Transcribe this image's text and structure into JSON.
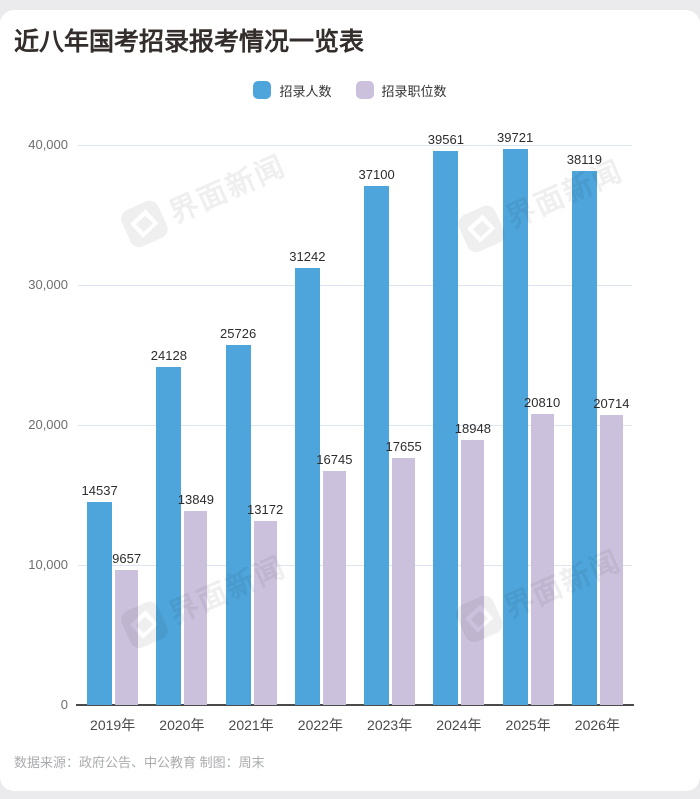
{
  "title": "近八年国考招录报考情况一览表",
  "legend": [
    {
      "label": "招录人数",
      "color": "#4DA5DB"
    },
    {
      "label": "招录职位数",
      "color": "#CCC1DD"
    }
  ],
  "watermark": {
    "text": "界面新闻",
    "icon": "jiemian-news-logo"
  },
  "footer": {
    "source_note": "数据来源：政府公告、中公教育 制图：周末"
  },
  "colors": {
    "recruit_bar": "#4DA5DB",
    "position_bar": "#CCC1DD",
    "gridline": "#dde5ef",
    "baseline": "#4b4b4b"
  },
  "chart_data": {
    "type": "bar",
    "title": "近八年国考招录报考情况一览表",
    "categories": [
      "2019年",
      "2020年",
      "2021年",
      "2022年",
      "2023年",
      "2024年",
      "2025年",
      "2026年"
    ],
    "series": [
      {
        "name": "招录人数",
        "color": "#4DA5DB",
        "values": [
          14537,
          24128,
          25726,
          31242,
          37100,
          39561,
          39721,
          38119
        ]
      },
      {
        "name": "招录职位数",
        "color": "#CCC1DD",
        "values": [
          9657,
          13849,
          13172,
          16745,
          17655,
          18948,
          20810,
          20714
        ]
      }
    ],
    "xlabel": "",
    "ylabel": "",
    "ylim": [
      0,
      40000
    ],
    "yticks": [
      {
        "value": 0,
        "label": "0"
      },
      {
        "value": 10000,
        "label": "10,000"
      },
      {
        "value": 20000,
        "label": "20,000"
      },
      {
        "value": 30000,
        "label": "30,000"
      },
      {
        "value": 40000,
        "label": "40,000"
      }
    ],
    "grid": true,
    "legend_position": "top",
    "value_labels": true
  }
}
